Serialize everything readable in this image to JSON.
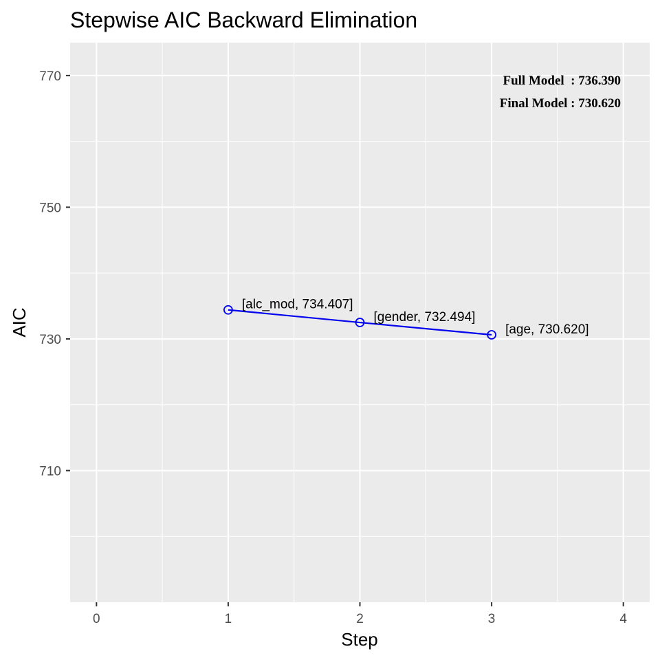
{
  "chart_data": {
    "type": "line",
    "title": "Stepwise AIC Backward Elimination",
    "xlabel": "Step",
    "ylabel": "AIC",
    "xlim": [
      -0.2,
      4.2
    ],
    "ylim": [
      690,
      775
    ],
    "x_ticks": [
      0,
      1,
      2,
      3,
      4
    ],
    "x_minor": [
      0.5,
      1.5,
      2.5,
      3.5
    ],
    "y_ticks": [
      710,
      730,
      750,
      770
    ],
    "y_minor": [
      700,
      720,
      740,
      760
    ],
    "grid": true,
    "series": [
      {
        "points": [
          {
            "x": 1,
            "y": 734.407,
            "label": "[alc_mod, 734.407]"
          },
          {
            "x": 2,
            "y": 732.494,
            "label": "[gender, 732.494]"
          },
          {
            "x": 3,
            "y": 730.62,
            "label": "[age, 730.620]"
          }
        ]
      }
    ],
    "annotations": [
      "Full Model  : 736.390",
      "Final Model : 730.620"
    ],
    "colors": {
      "panel": "#ebebeb",
      "grid": "#ffffff",
      "line": "#0000ee"
    }
  }
}
